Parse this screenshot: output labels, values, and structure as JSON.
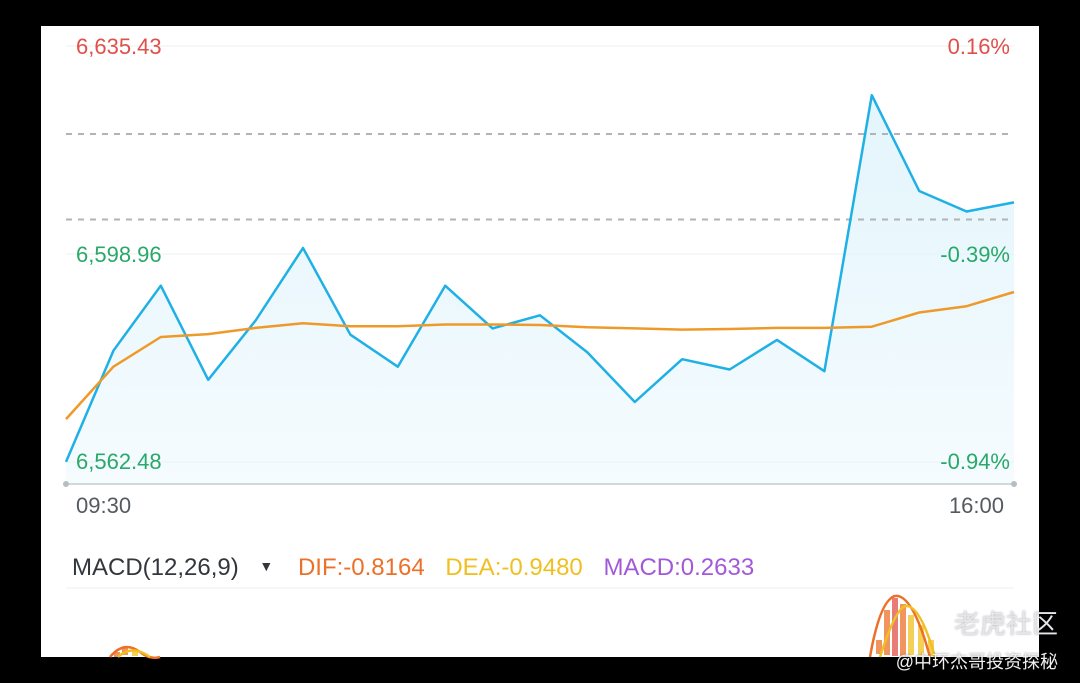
{
  "price_axis": {
    "high": "6,635.43",
    "mid": "6,598.96",
    "low": "6,562.48",
    "pct_high": "0.16%",
    "pct_mid": "-0.39%",
    "pct_low": "-0.94%"
  },
  "time_axis": {
    "start": "09:30",
    "end": "16:00"
  },
  "macd": {
    "name": "MACD(12,26,9)",
    "caret": "▼",
    "dif": "DIF:-0.8164",
    "dea": "DEA:-0.9480",
    "macd": "MACD:0.2633"
  },
  "watermark": {
    "brand": "老虎社区",
    "author": "@中环杰哥投资探秘"
  },
  "colors": {
    "price_line": "#1fb0e6",
    "avg_line": "#ee9a2a",
    "area_fill": "#e3f5fc",
    "up": "#e0504a",
    "down": "#2aa86a",
    "dif": "#ec7028",
    "dea": "#f0c020",
    "macd": "#a259d9"
  },
  "chart_data": {
    "type": "line",
    "ylim": [
      6562.48,
      6635.43
    ],
    "yticks": [
      "6,635.43",
      "6,598.96",
      "6,562.48"
    ],
    "x": [
      0,
      5,
      10,
      15,
      20,
      25,
      30,
      35,
      40,
      45,
      50,
      55,
      60,
      65,
      70,
      75,
      80,
      85,
      90,
      95,
      100
    ],
    "xticks": [
      "09:30",
      "16:00"
    ],
    "series": [
      {
        "values": [
          6562.5,
          6582.0,
          6593.4,
          6576.9,
          6587.3,
          6600.0,
          6584.8,
          6579.2,
          6593.4,
          6585.9,
          6588.2,
          6581.7,
          6573.0,
          6580.5,
          6578.7,
          6583.9,
          6578.4,
          6626.8,
          6610.0,
          6606.4,
          6608.0
        ]
      },
      {
        "values": [
          6570.0,
          6579.2,
          6584.4,
          6584.9,
          6586.0,
          6586.8,
          6586.3,
          6586.3,
          6586.6,
          6586.6,
          6586.5,
          6586.1,
          6585.9,
          6585.7,
          6585.8,
          6586.0,
          6586.0,
          6586.2,
          6588.7,
          6589.8,
          6592.3
        ]
      }
    ],
    "reference_lines": [
      6620.0,
      6605.0
    ],
    "macd_params": "12,26,9",
    "DIF": -0.8164,
    "DEA": -0.948,
    "MACD": 0.2633
  }
}
